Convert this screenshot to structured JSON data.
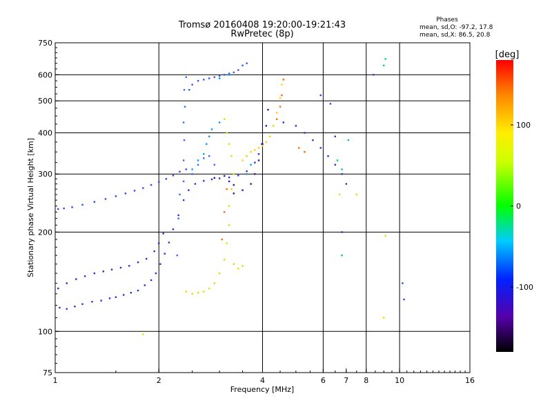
{
  "chart_data": {
    "type": "scatter",
    "title": "Tromsø 20160408 19:20:00-19:21:43",
    "subtitle": "RwPretec (8p)",
    "stats": {
      "heading": "Phases",
      "line_o": "mean, sd,O: -97.2, 17.8",
      "line_x": "mean, sd,X:  86.5, 20.8"
    },
    "xlabel": "Frequency [MHz]",
    "ylabel": "Stationary phase Virtual Height [km]",
    "x_scale": "log2",
    "y_scale": "log",
    "xlim": [
      1,
      16
    ],
    "ylim": [
      75,
      750
    ],
    "x_ticks": [
      1,
      2,
      4,
      6,
      7,
      8,
      10,
      16
    ],
    "x_tick_labels": [
      "1",
      "2",
      "4",
      "6",
      "7",
      "8",
      "10",
      "16"
    ],
    "y_ticks": [
      75,
      100,
      200,
      300,
      400,
      500,
      600,
      750
    ],
    "y_tick_labels": [
      "75",
      "100",
      "200",
      "300",
      "400",
      "500",
      "600",
      "750"
    ],
    "grid_x": [
      2,
      4,
      6,
      8,
      10
    ],
    "grid_y": [
      100,
      200,
      300,
      400,
      500,
      600
    ],
    "colorbar": {
      "label": "[deg]",
      "range": [
        -180,
        180
      ],
      "ticks": [
        100,
        0,
        -100
      ],
      "tick_labels": [
        "100",
        "0",
        "-100"
      ]
    },
    "series": [
      {
        "phase_deg": -105,
        "color": "#2233dd",
        "points": [
          [
            1.03,
            118
          ],
          [
            1.08,
            117
          ],
          [
            1.14,
            119
          ],
          [
            1.2,
            121
          ],
          [
            1.28,
            123
          ],
          [
            1.36,
            124
          ],
          [
            1.44,
            126
          ],
          [
            1.5,
            127
          ],
          [
            1.58,
            129
          ],
          [
            1.66,
            131
          ],
          [
            1.74,
            133
          ],
          [
            1.82,
            138
          ],
          [
            1.9,
            143
          ],
          [
            1.96,
            150
          ],
          [
            2.02,
            160
          ],
          [
            2.08,
            172
          ],
          [
            2.14,
            186
          ],
          [
            2.2,
            204
          ],
          [
            2.28,
            225
          ],
          [
            2.36,
            250
          ],
          [
            2.44,
            268
          ],
          [
            2.55,
            280
          ],
          [
            2.7,
            286
          ],
          [
            2.85,
            289
          ],
          [
            3.0,
            291
          ],
          [
            3.2,
            293
          ],
          [
            3.4,
            297
          ],
          [
            3.6,
            306
          ],
          [
            3.8,
            325
          ],
          [
            3.9,
            345
          ],
          [
            3.98,
            370
          ]
        ]
      },
      {
        "phase_deg": -110,
        "color": "#2a2ad0",
        "points": [
          [
            1.02,
            135
          ],
          [
            1.08,
            140
          ],
          [
            1.15,
            144
          ],
          [
            1.22,
            147
          ],
          [
            1.3,
            150
          ],
          [
            1.38,
            152
          ],
          [
            1.46,
            154
          ],
          [
            1.55,
            156
          ],
          [
            1.64,
            158
          ],
          [
            1.74,
            162
          ],
          [
            1.84,
            166
          ],
          [
            1.94,
            175
          ],
          [
            2.0,
            185
          ],
          [
            2.06,
            198
          ]
        ]
      },
      {
        "phase_deg": -95,
        "color": "#3344ee",
        "points": [
          [
            1.02,
            235
          ],
          [
            1.06,
            236
          ],
          [
            1.12,
            238
          ],
          [
            1.2,
            242
          ],
          [
            1.3,
            247
          ],
          [
            1.4,
            252
          ],
          [
            1.5,
            257
          ],
          [
            1.6,
            262
          ],
          [
            1.7,
            267
          ],
          [
            1.8,
            272
          ],
          [
            1.9,
            278
          ],
          [
            2.0,
            284
          ],
          [
            2.1,
            290
          ],
          [
            2.2,
            297
          ],
          [
            2.3,
            305
          ],
          [
            2.4,
            310
          ]
        ]
      },
      {
        "phase_deg": -90,
        "color": "#3355ee",
        "points": [
          [
            2.45,
            540
          ],
          [
            2.5,
            560
          ],
          [
            2.6,
            575
          ],
          [
            2.7,
            580
          ],
          [
            2.8,
            585
          ],
          [
            2.9,
            590
          ],
          [
            3.0,
            595
          ],
          [
            3.1,
            600
          ],
          [
            3.2,
            605
          ],
          [
            3.3,
            610
          ],
          [
            3.4,
            620
          ],
          [
            3.5,
            640
          ],
          [
            3.6,
            650
          ]
        ]
      },
      {
        "phase_deg": -85,
        "color": "#3366ff",
        "points": [
          [
            2.36,
            285
          ],
          [
            2.36,
            330
          ],
          [
            2.37,
            380
          ],
          [
            2.36,
            430
          ],
          [
            2.38,
            480
          ],
          [
            2.37,
            540
          ],
          [
            2.4,
            590
          ],
          [
            2.26,
            170
          ],
          [
            2.28,
            220
          ],
          [
            2.3,
            260
          ],
          [
            2.5,
            300
          ],
          [
            2.6,
            320
          ],
          [
            2.7,
            335
          ],
          [
            2.8,
            340
          ],
          [
            2.9,
            320
          ]
        ]
      },
      {
        "phase_deg": -120,
        "color": "#3311aa",
        "points": [
          [
            3.3,
            262
          ],
          [
            3.5,
            268
          ],
          [
            3.7,
            280
          ],
          [
            3.8,
            300
          ],
          [
            3.9,
            330
          ],
          [
            4.0,
            370
          ],
          [
            4.1,
            420
          ],
          [
            4.15,
            470
          ],
          [
            2.9,
            292
          ],
          [
            3.1,
            296
          ],
          [
            3.2,
            285
          ],
          [
            3.3,
            278
          ]
        ]
      },
      {
        "phase_deg": -40,
        "color": "#0099ff",
        "points": [
          [
            3.0,
            585
          ],
          [
            3.2,
            600
          ],
          [
            2.5,
            310
          ],
          [
            2.6,
            330
          ],
          [
            2.7,
            345
          ],
          [
            2.75,
            370
          ],
          [
            2.8,
            390
          ],
          [
            2.85,
            410
          ],
          [
            3.0,
            430
          ],
          [
            3.6,
            300
          ],
          [
            3.7,
            320
          ]
        ]
      },
      {
        "phase_deg": 95,
        "color": "#dddd00",
        "points": [
          [
            2.4,
            132
          ],
          [
            2.5,
            130
          ],
          [
            2.6,
            131
          ],
          [
            2.7,
            132
          ],
          [
            2.8,
            135
          ],
          [
            2.9,
            140
          ],
          [
            3.0,
            150
          ],
          [
            3.1,
            165
          ],
          [
            3.15,
            185
          ],
          [
            3.2,
            210
          ],
          [
            3.2,
            240
          ],
          [
            3.25,
            270
          ],
          [
            3.3,
            300
          ],
          [
            3.25,
            340
          ],
          [
            3.2,
            370
          ],
          [
            3.15,
            400
          ],
          [
            3.1,
            440
          ],
          [
            3.3,
            160
          ],
          [
            3.4,
            155
          ],
          [
            3.5,
            158
          ]
        ]
      },
      {
        "phase_deg": 120,
        "color": "#ffcc00",
        "points": [
          [
            3.5,
            330
          ],
          [
            3.6,
            340
          ],
          [
            3.7,
            350
          ],
          [
            3.8,
            355
          ],
          [
            3.9,
            360
          ],
          [
            4.0,
            365
          ],
          [
            4.1,
            375
          ],
          [
            4.2,
            390
          ],
          [
            4.3,
            420
          ],
          [
            4.4,
            460
          ],
          [
            4.5,
            510
          ],
          [
            4.55,
            560
          ]
        ]
      },
      {
        "phase_deg": 150,
        "color": "#ff6600",
        "points": [
          [
            3.05,
            190
          ],
          [
            3.1,
            230
          ],
          [
            3.15,
            270
          ],
          [
            4.4,
            440
          ],
          [
            4.5,
            480
          ],
          [
            4.55,
            520
          ],
          [
            4.6,
            580
          ],
          [
            5.1,
            360
          ],
          [
            5.3,
            350
          ]
        ]
      },
      {
        "phase_deg": -100,
        "color": "#2233cc",
        "points": [
          [
            4.6,
            430
          ],
          [
            5.0,
            420
          ],
          [
            5.3,
            400
          ],
          [
            5.6,
            380
          ],
          [
            5.9,
            360
          ],
          [
            6.2,
            340
          ],
          [
            6.5,
            320
          ],
          [
            6.8,
            300
          ],
          [
            7.0,
            280
          ],
          [
            6.5,
            390
          ],
          [
            6.8,
            200
          ]
        ]
      },
      {
        "phase_deg": 10,
        "color": "#00cc88",
        "points": [
          [
            6.8,
            170
          ],
          [
            6.8,
            310
          ],
          [
            7.1,
            380
          ],
          [
            6.6,
            330
          ],
          [
            9.1,
            670
          ],
          [
            9.0,
            640
          ]
        ]
      },
      {
        "phase_deg": 110,
        "color": "#e0e000",
        "points": [
          [
            9.0,
            110
          ],
          [
            9.1,
            195
          ],
          [
            6.7,
            260
          ],
          [
            7.5,
            260
          ],
          [
            1.8,
            98
          ]
        ]
      },
      {
        "phase_deg": -80,
        "color": "#2244ee",
        "points": [
          [
            8.4,
            600
          ],
          [
            10.2,
            140
          ],
          [
            10.3,
            125
          ],
          [
            6.3,
            490
          ],
          [
            5.9,
            520
          ]
        ]
      }
    ]
  }
}
